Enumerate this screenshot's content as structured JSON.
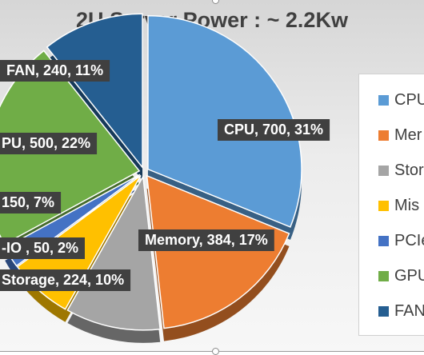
{
  "chart_data": {
    "type": "pie",
    "title": "2U Server Power : ~ 2.2Kw",
    "categories": [
      "CPU",
      "Memory",
      "Storage",
      "Misc",
      "PCIe-IO",
      "GPU",
      "FAN"
    ],
    "values": [
      700,
      384,
      224,
      150,
      50,
      500,
      240
    ],
    "percents": [
      31,
      17,
      10,
      7,
      2,
      22,
      11
    ],
    "colors": [
      "#5b9bd5",
      "#ed7d31",
      "#a5a5a5",
      "#ffc000",
      "#4472c4",
      "#70ad47",
      "#255e91"
    ],
    "data_labels": [
      "CPU, 700, 31%",
      "Memory, 384, 17%",
      "Storage, 224, 10%",
      "150, 7%",
      "-IO , 50, 2%",
      "PU, 500, 22%",
      "FAN, 240, 11%"
    ],
    "legend": {
      "position": "right",
      "entries": [
        "CPU",
        "Mer",
        "Stor",
        "Mis",
        "PCIe",
        "GPU",
        "FAN"
      ]
    },
    "style": "3d-exploded"
  }
}
